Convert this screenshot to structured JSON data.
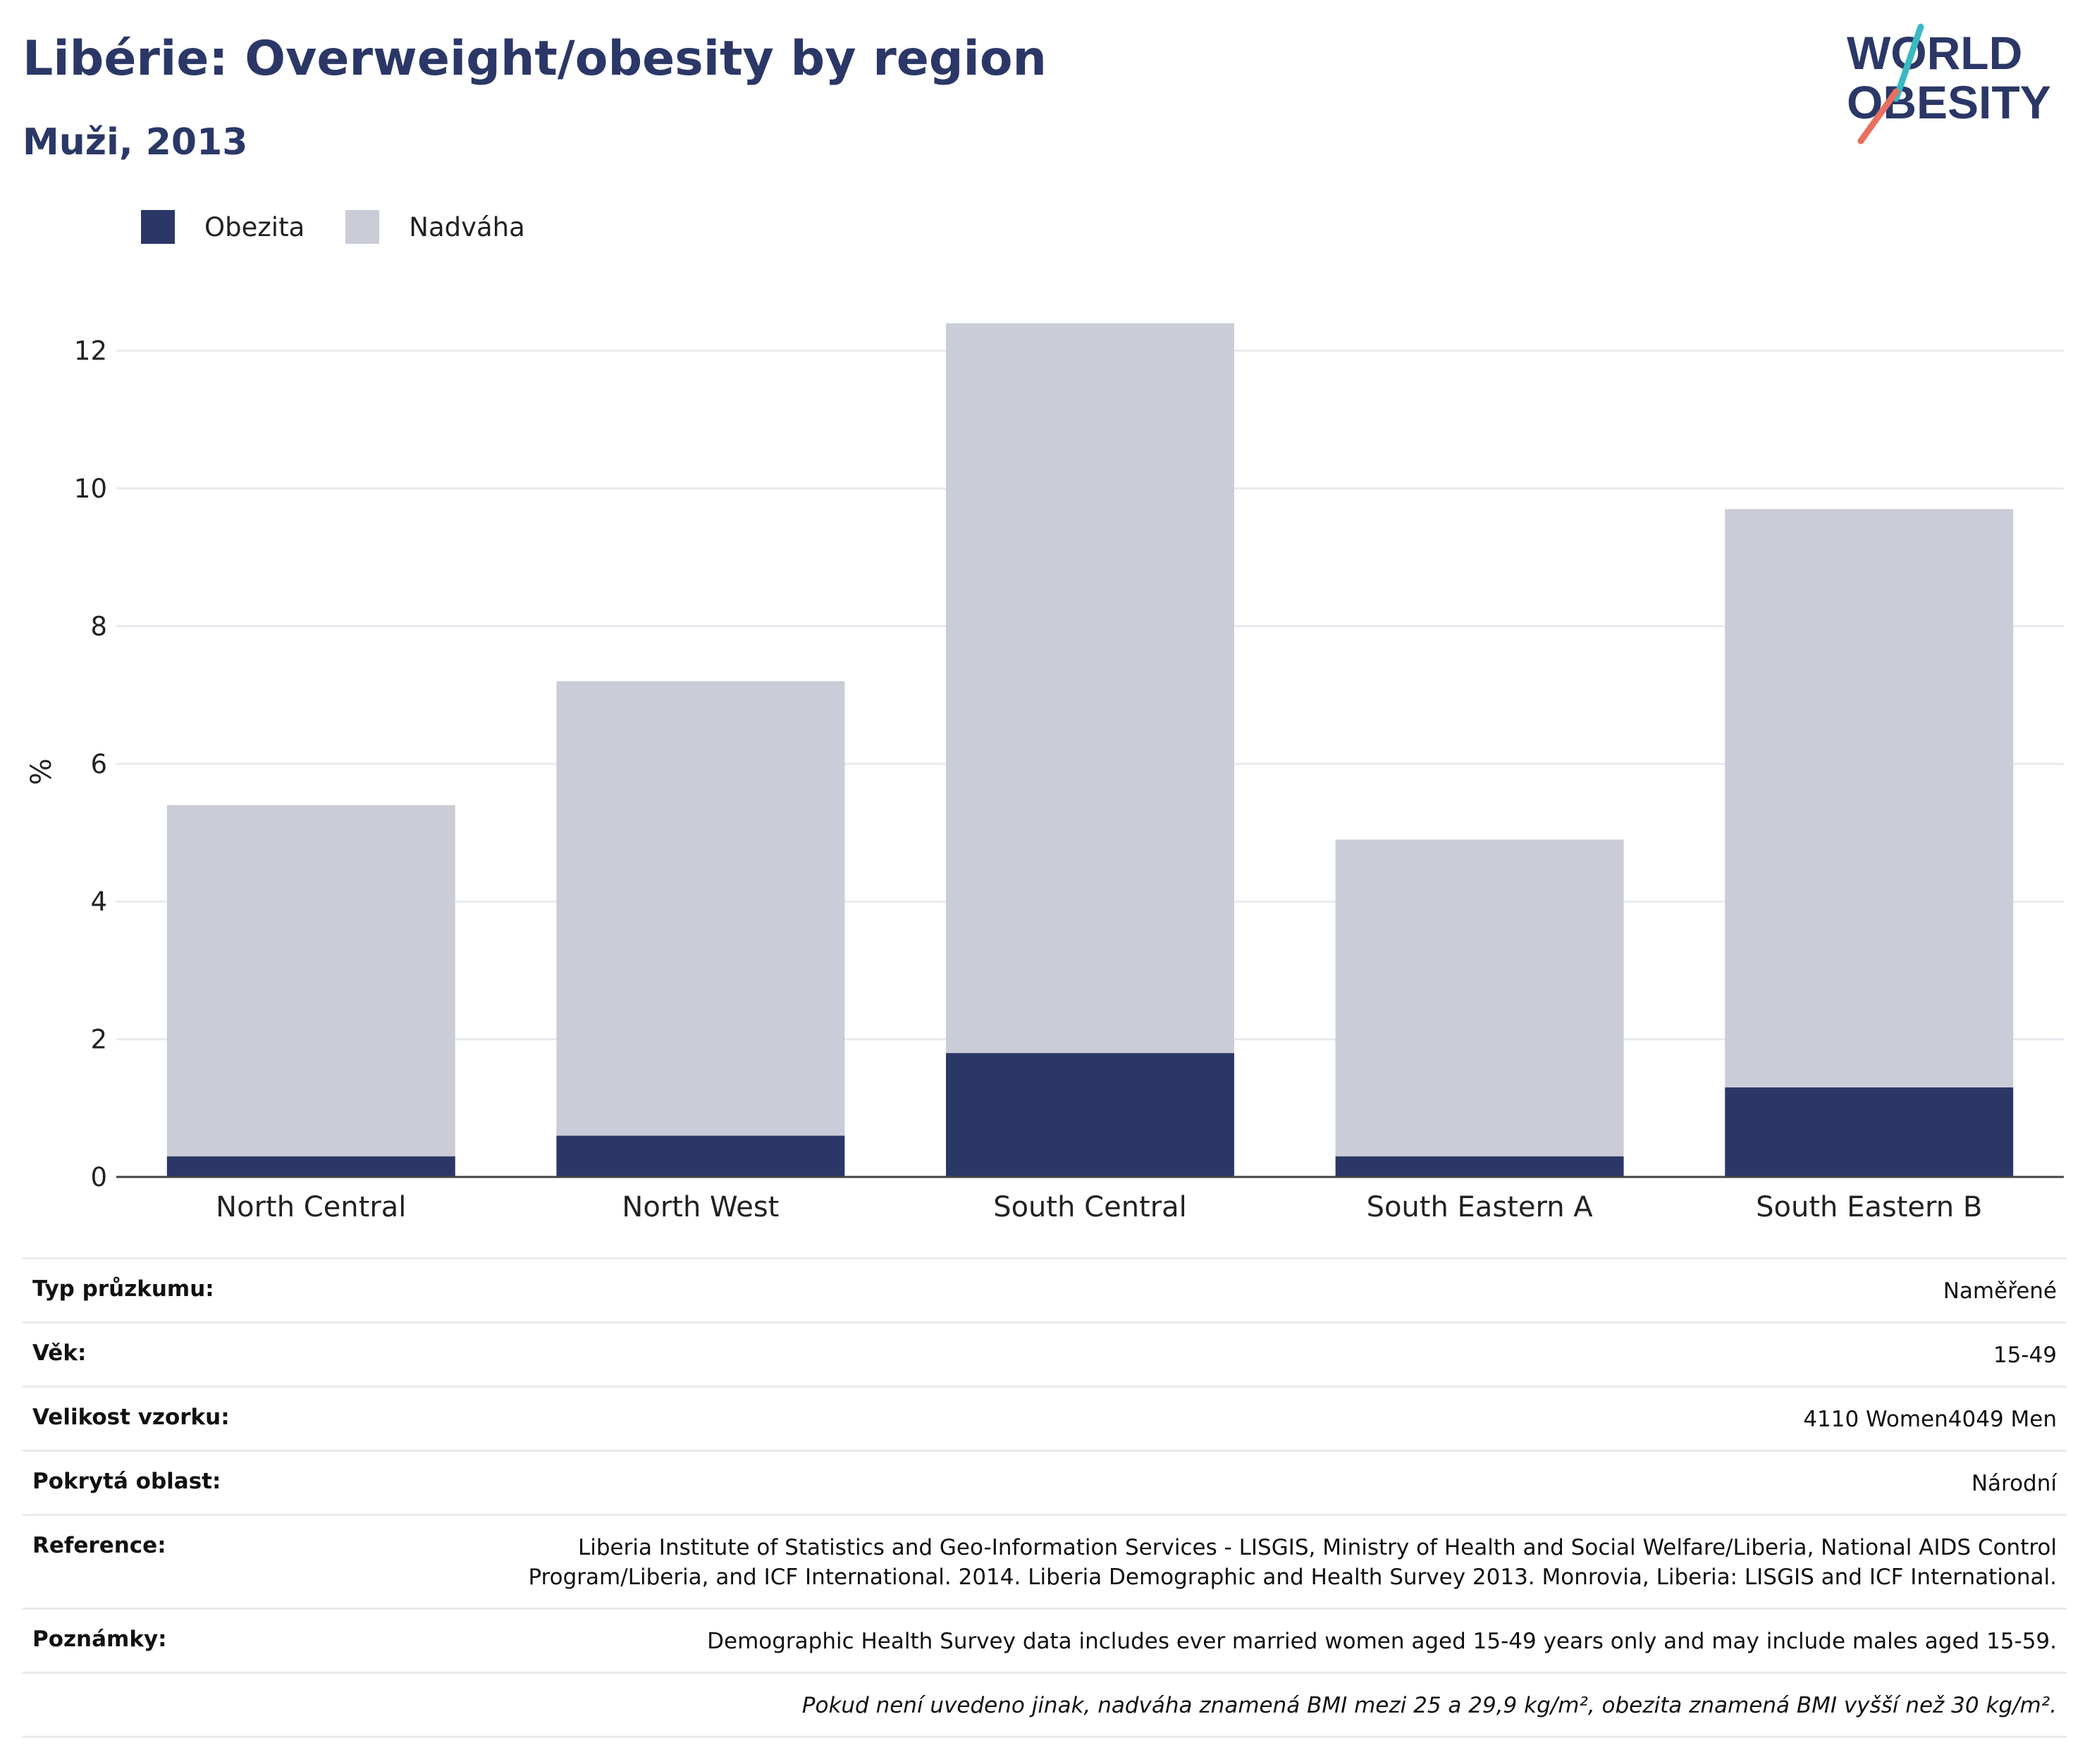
{
  "title": "Libérie: Overweight/obesity by region",
  "subtitle": "Muži, 2013",
  "logo": {
    "line1": "WORLD",
    "line2": "OBESITY"
  },
  "colors": {
    "obesity": "#2b3766",
    "overweight": "#caccd7",
    "title": "#2b3766",
    "logo_teal": "#3bb9c2",
    "logo_coral": "#e8705e"
  },
  "chart_data": {
    "type": "bar",
    "stacked": true,
    "categories": [
      "North Central",
      "North West",
      "South Central",
      "South Eastern A",
      "South Eastern B"
    ],
    "series": [
      {
        "name": "Obezita",
        "values": [
          0.3,
          0.6,
          1.8,
          0.3,
          1.3
        ]
      },
      {
        "name": "Nadváha",
        "values": [
          5.1,
          6.6,
          10.6,
          4.6,
          8.4
        ]
      }
    ],
    "ylabel": "%",
    "ylim": [
      0,
      13
    ],
    "yticks": [
      0,
      2,
      4,
      6,
      8,
      10,
      12
    ],
    "grid": true,
    "legend_position": "top-left"
  },
  "meta": [
    {
      "key": "Typ průzkumu:",
      "value": "Naměřené"
    },
    {
      "key": "Věk:",
      "value": "15-49"
    },
    {
      "key": "Velikost vzorku:",
      "value": "4110 Women4049 Men"
    },
    {
      "key": "Pokrytá oblast:",
      "value": "Národní"
    },
    {
      "key": "Reference:",
      "value": "Liberia Institute of Statistics and Geo-Information Services - LISGIS, Ministry of Health and Social Welfare/Liberia, National AIDS Control Program/Liberia, and ICF International. 2014. Liberia Demographic and Health Survey 2013. Monrovia, Liberia: LISGIS and ICF International."
    },
    {
      "key": "Poznámky:",
      "value": "Demographic Health Survey data includes ever married women aged 15-49 years only and may include males aged 15-59."
    }
  ],
  "footnote": "Pokud není uvedeno jinak, nadváha znamená BMI mezi 25 a 29,9 kg/m², obezita znamená BMI vyšší než 30 kg/m²."
}
